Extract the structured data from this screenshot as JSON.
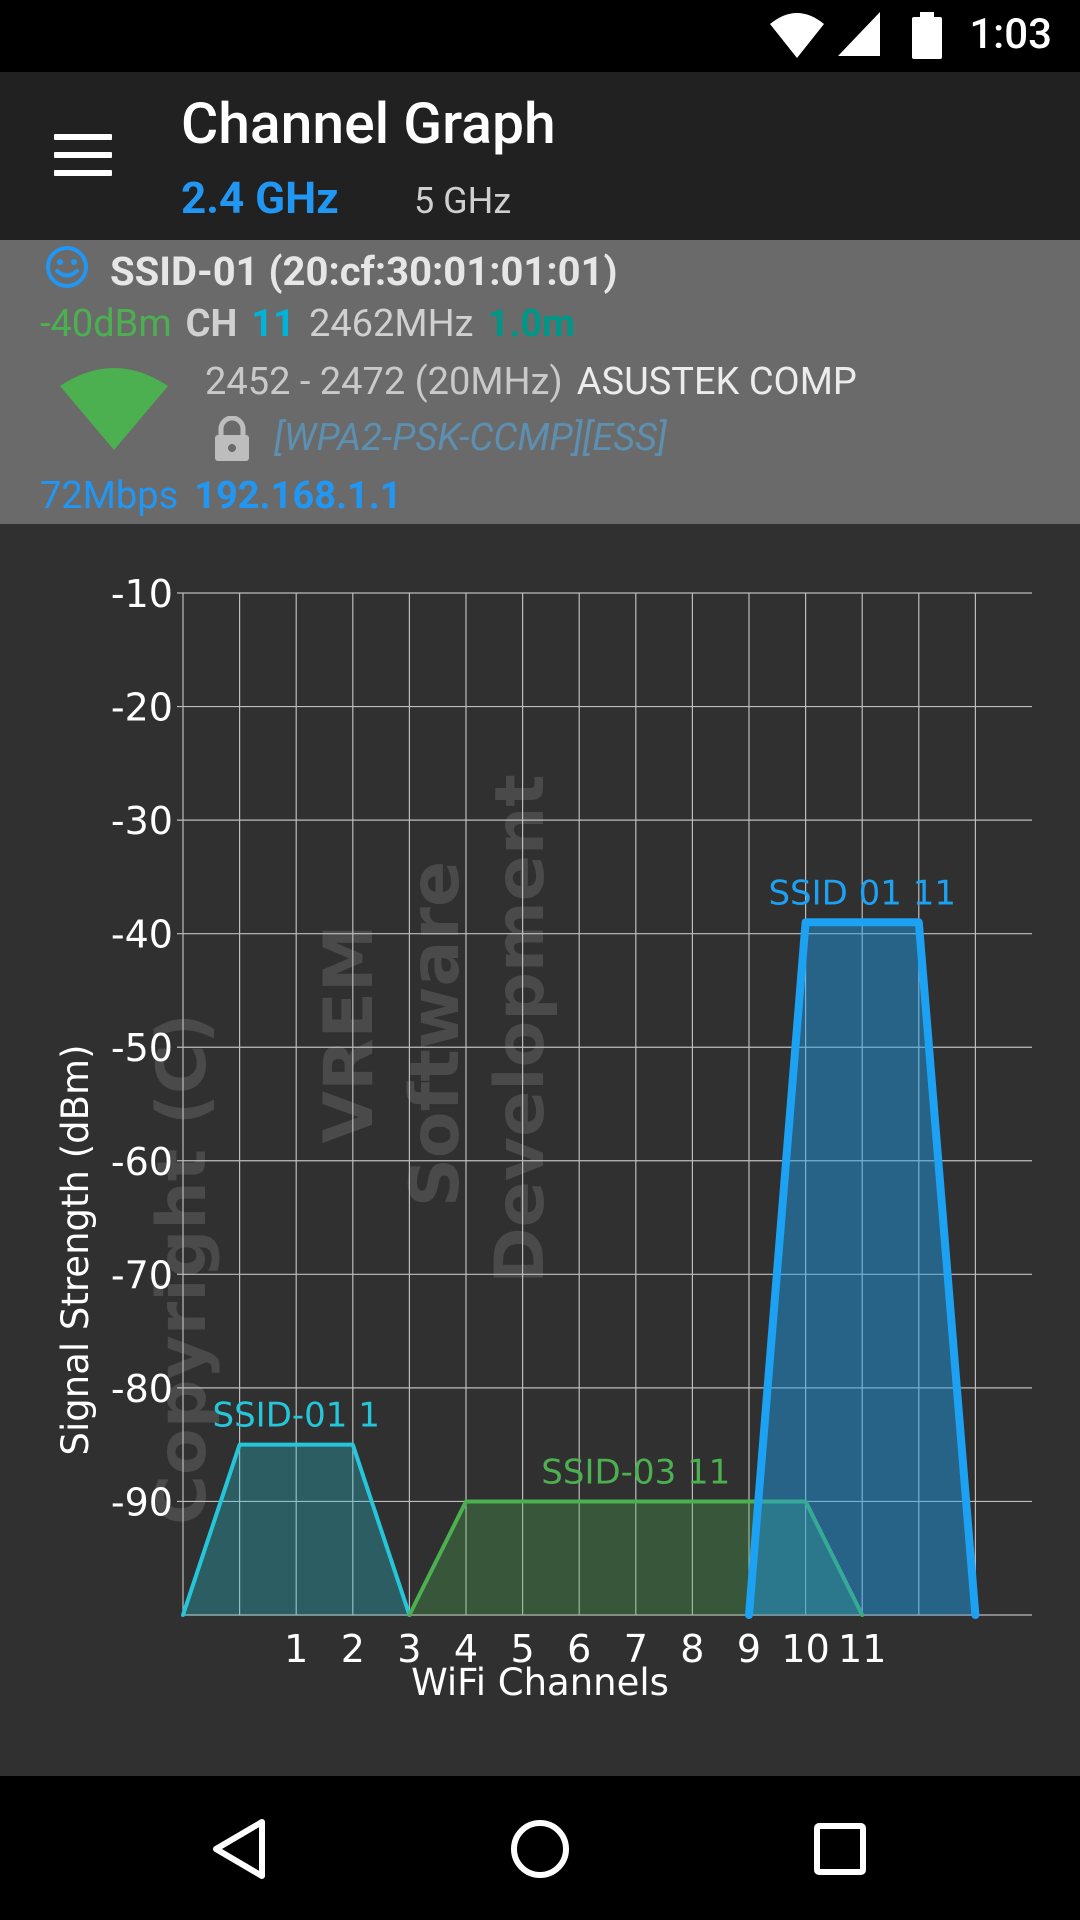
{
  "status_bar": {
    "time": "1:03",
    "icons": [
      "wifi-icon",
      "cell-signal-icon",
      "battery-icon"
    ]
  },
  "app_bar": {
    "menu_icon": "hamburger-menu-icon",
    "title": "Channel Graph",
    "tab_active": "2.4 GHz",
    "tab_inactive": "5 GHz"
  },
  "network": {
    "status_icon": "smiley-icon",
    "ssid": "SSID-01 (20:cf:30:01:01:01)",
    "signal": "-40dBm",
    "channel_label": "CH",
    "channel": "11",
    "frequency": "2462MHz",
    "distance": "1.0m",
    "range": "2452 - 2472 (20MHz)",
    "vendor": "ASUSTEK COMP",
    "security": "[WPA2-PSK-CCMP][ESS]",
    "rate": "72Mbps",
    "ip": "192.168.1.1",
    "colors": {
      "signal": "#4caf50",
      "channel": "#00b4d8",
      "distance": "#009688",
      "link": "#2196f3"
    }
  },
  "chart_data": {
    "type": "area",
    "ylabel": "Signal Strength (dBm)",
    "xlabel": "WiFi Channels",
    "ylim": [
      -100,
      -10
    ],
    "xlim": [
      -1,
      14
    ],
    "y_ticks": [
      -10,
      -20,
      -30,
      -40,
      -50,
      -60,
      -70,
      -80,
      -90
    ],
    "x_ticks": [
      1,
      2,
      3,
      4,
      5,
      6,
      7,
      8,
      9,
      10,
      11
    ],
    "grid": true,
    "watermark": [
      "Copyright (C)",
      "VREM",
      "Software",
      "Development"
    ],
    "series": [
      {
        "name": "SSID-01 1",
        "channel": 1,
        "color": "#26c6da",
        "points": [
          [
            -1,
            -100
          ],
          [
            0,
            -85
          ],
          [
            2,
            -85
          ],
          [
            3,
            -100
          ]
        ]
      },
      {
        "name": "SSID-03 11",
        "channel": 11,
        "color": "#4caf50",
        "points": [
          [
            3,
            -100
          ],
          [
            4,
            -90
          ],
          [
            10,
            -90
          ],
          [
            11,
            -100
          ]
        ]
      },
      {
        "name": "SSID 01 11",
        "channel": 11,
        "color": "#1da1f2",
        "points": [
          [
            9,
            -100
          ],
          [
            10,
            -39
          ],
          [
            12,
            -39
          ],
          [
            13,
            -100
          ]
        ]
      }
    ]
  },
  "nav_bar": {
    "buttons": [
      "back-icon",
      "home-icon",
      "recents-icon"
    ]
  }
}
